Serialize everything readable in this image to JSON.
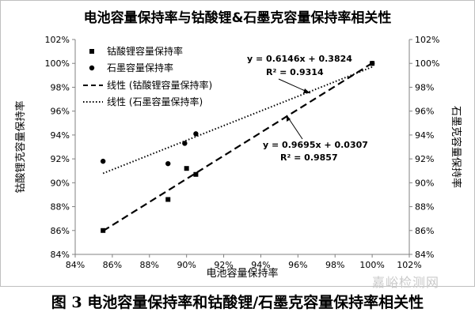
{
  "chart_data": {
    "type": "scatter",
    "title": "电池容量保持率与钴酸锂&石墨克容量保持率相关性",
    "xlabel": "电池容量保持率",
    "ylabel_left": "钴酸锂克容量保持率",
    "ylabel_right": "石墨克容量保持率",
    "xlim": [
      0.84,
      1.02
    ],
    "ylim": [
      0.84,
      1.02
    ],
    "x_ticks": [
      "84%",
      "86%",
      "88%",
      "90%",
      "92%",
      "94%",
      "96%",
      "98%",
      "100%",
      "102%"
    ],
    "y_ticks": [
      "84%",
      "86%",
      "88%",
      "90%",
      "92%",
      "94%",
      "96%",
      "98%",
      "100%",
      "102%"
    ],
    "grid": false,
    "legend_position": "top-left",
    "series": [
      {
        "name": "钴酸锂容量保持率",
        "marker": "square",
        "color": "#000000",
        "x": [
          0.855,
          0.89,
          0.9,
          0.905,
          1.0
        ],
        "y": [
          0.86,
          0.886,
          0.912,
          0.907,
          1.0
        ]
      },
      {
        "name": "石墨容量保持率",
        "marker": "circle",
        "color": "#000000",
        "x": [
          0.855,
          0.89,
          0.899,
          0.905,
          1.0
        ],
        "y": [
          0.918,
          0.916,
          0.933,
          0.941,
          1.0
        ]
      }
    ],
    "trendlines": [
      {
        "name": "线性 (钴酸锂容量保持率)",
        "style": "dashed",
        "slope": 0.9695,
        "intercept": 0.0307,
        "x_range": [
          0.855,
          1.0
        ],
        "equation": "y = 0.9695x + 0.0307",
        "r2": "R² = 0.9857"
      },
      {
        "name": "线性 (石墨容量保持率)",
        "style": "dotted",
        "slope": 0.6146,
        "intercept": 0.3824,
        "x_range": [
          0.855,
          1.0
        ],
        "equation": "y = 0.6146x + 0.3824",
        "r2": "R² = 0.9314"
      }
    ]
  },
  "caption": "图 3   电池容量保持率和钴酸锂/石墨克容量保持率相关性",
  "watermark": "嘉峪检测网"
}
